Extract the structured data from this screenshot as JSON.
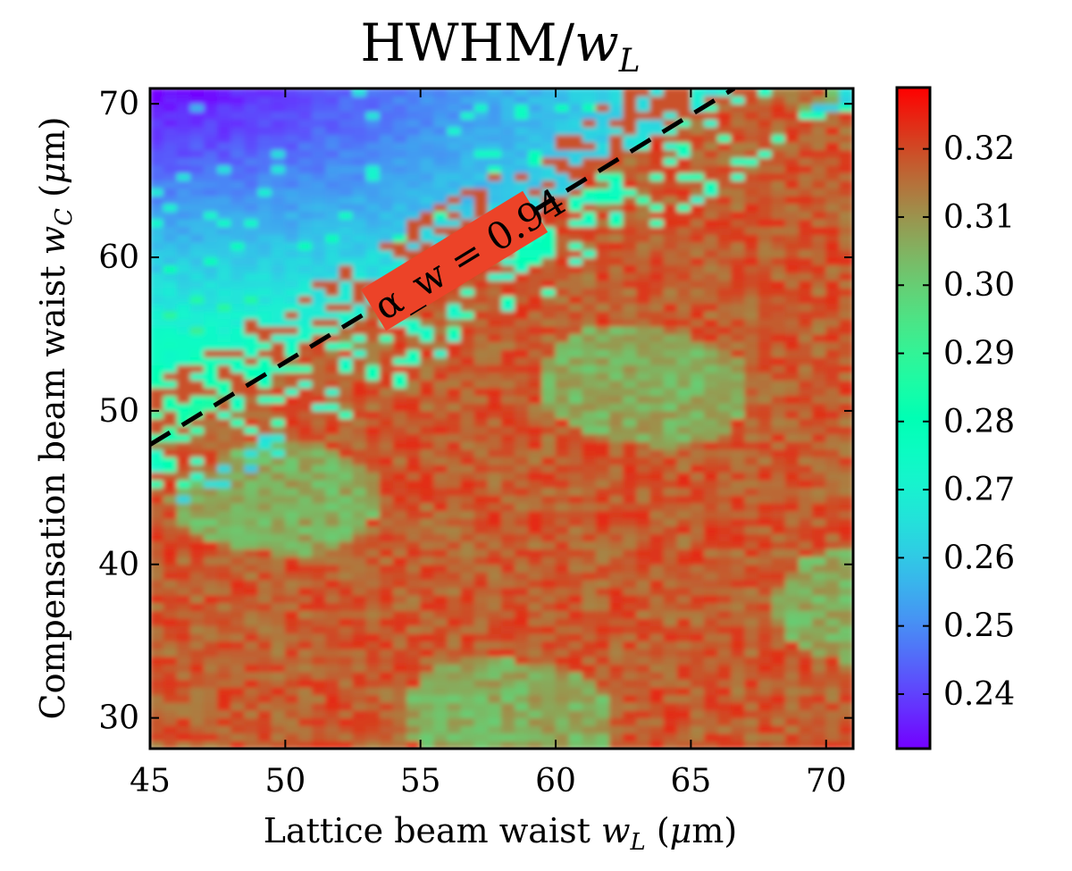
{
  "chart_data": {
    "type": "heatmap",
    "title": "HWHM/w_L",
    "xlabel": "Lattice beam waist w_L (μm)",
    "ylabel": "Compensation beam waist w_C (μm)",
    "x_range": [
      45,
      71
    ],
    "y_range": [
      28,
      71
    ],
    "x_ticks": [
      45,
      50,
      55,
      60,
      65,
      70
    ],
    "y_ticks": [
      30,
      40,
      50,
      60,
      70
    ],
    "colorbar": {
      "range": [
        0.232,
        0.329
      ],
      "ticks": [
        0.24,
        0.25,
        0.26,
        0.27,
        0.28,
        0.29,
        0.3,
        0.31,
        0.32
      ],
      "tick_labels": [
        "0.24",
        "0.25",
        "0.26",
        "0.27",
        "0.28",
        "0.29",
        "0.30",
        "0.31",
        "0.32"
      ],
      "colormap": "rainbow"
    },
    "reference_line": {
      "style": "dashed",
      "color": "#000000",
      "points": [
        [
          45,
          47.8
        ],
        [
          66.6,
          71
        ]
      ]
    },
    "annotation": {
      "text": "α_w = 0.94",
      "x": 54,
      "y": 57
    },
    "field_description": {
      "low_region_min": 0.232,
      "plateau_value": 0.322,
      "note": "Values near 0.23 at top-left (small w_L, large w_C), rising to ~0.32 below/right of the dashed line."
    }
  }
}
